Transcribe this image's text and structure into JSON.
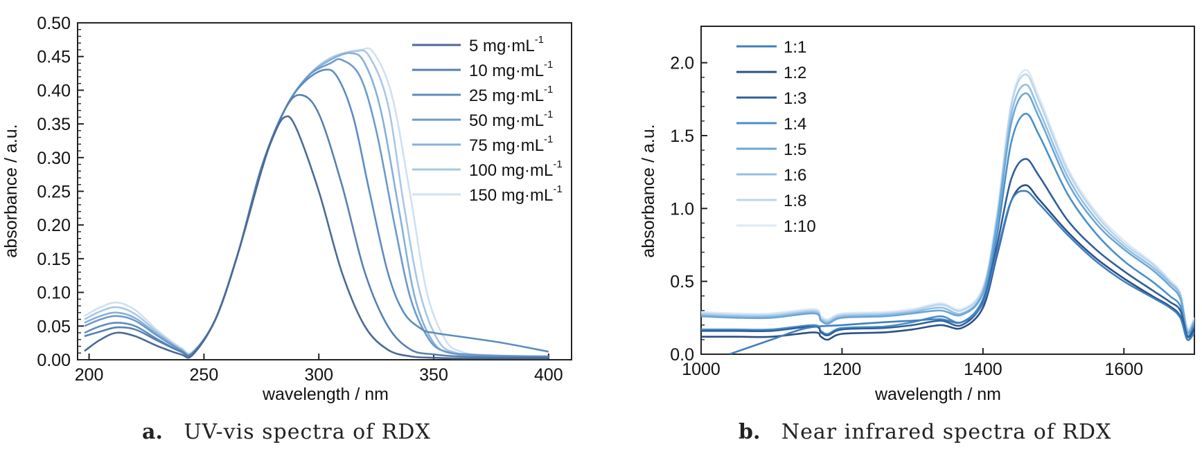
{
  "chart_data": [
    {
      "type": "line",
      "caption_letter": "a.",
      "caption_text": "UV-vis spectra of RDX",
      "title": "",
      "xlabel": "wavelength / nm",
      "ylabel": "absorbance / a.u.",
      "xlim": [
        195,
        410
      ],
      "ylim": [
        0,
        0.5
      ],
      "xticks": [
        200,
        250,
        300,
        350,
        400
      ],
      "yticks": [
        0.0,
        0.05,
        0.1,
        0.15,
        0.2,
        0.25,
        0.3,
        0.35,
        0.4,
        0.45,
        0.5
      ],
      "grid": false,
      "legend_position": "top-right",
      "series": [
        {
          "name": "5 mg·mL",
          "superscript": "-1",
          "color": "#4a6a94",
          "x": [
            198,
            205,
            212,
            220,
            230,
            240,
            245,
            255,
            265,
            275,
            280,
            285,
            290,
            300,
            310,
            320,
            330,
            340,
            350,
            360,
            380,
            400
          ],
          "y": [
            0.013,
            0.03,
            0.04,
            0.035,
            0.02,
            0.008,
            0.007,
            0.06,
            0.16,
            0.28,
            0.33,
            0.36,
            0.345,
            0.25,
            0.13,
            0.05,
            0.015,
            0.005,
            0.003,
            0.002,
            0.002,
            0.002
          ]
        },
        {
          "name": "10 mg·mL",
          "superscript": "-1",
          "color": "#5680b0",
          "x": [
            198,
            205,
            212,
            220,
            230,
            240,
            245,
            255,
            265,
            275,
            285,
            292,
            300,
            310,
            320,
            330,
            340,
            350,
            360,
            380,
            400
          ],
          "y": [
            0.035,
            0.042,
            0.048,
            0.045,
            0.028,
            0.012,
            0.009,
            0.06,
            0.16,
            0.285,
            0.37,
            0.393,
            0.365,
            0.26,
            0.13,
            0.05,
            0.015,
            0.008,
            0.005,
            0.004,
            0.004
          ]
        },
        {
          "name": "25 mg·mL",
          "superscript": "-1",
          "color": "#5d8cc0",
          "x": [
            198,
            205,
            212,
            220,
            230,
            240,
            245,
            255,
            265,
            275,
            285,
            293,
            302,
            308,
            315,
            322,
            330,
            337,
            345,
            350,
            360,
            380,
            400
          ],
          "y": [
            0.04,
            0.05,
            0.055,
            0.05,
            0.03,
            0.012,
            0.01,
            0.06,
            0.16,
            0.285,
            0.37,
            0.41,
            0.43,
            0.42,
            0.36,
            0.25,
            0.13,
            0.07,
            0.045,
            0.04,
            0.035,
            0.025,
            0.012
          ]
        },
        {
          "name": "50 mg·mL",
          "superscript": "-1",
          "color": "#6b9bcb",
          "x": [
            198,
            205,
            212,
            220,
            230,
            240,
            245,
            255,
            265,
            275,
            285,
            295,
            305,
            310,
            318,
            325,
            333,
            340,
            348,
            355,
            365,
            380,
            400
          ],
          "y": [
            0.05,
            0.06,
            0.065,
            0.058,
            0.035,
            0.014,
            0.01,
            0.06,
            0.16,
            0.285,
            0.37,
            0.42,
            0.44,
            0.445,
            0.42,
            0.34,
            0.2,
            0.09,
            0.03,
            0.012,
            0.008,
            0.006,
            0.005
          ]
        },
        {
          "name": "75 mg·mL",
          "superscript": "-1",
          "color": "#86b0d8",
          "x": [
            198,
            205,
            212,
            220,
            230,
            240,
            245,
            255,
            265,
            275,
            285,
            295,
            305,
            314,
            320,
            327,
            335,
            342,
            350,
            358,
            370,
            400
          ],
          "y": [
            0.055,
            0.065,
            0.07,
            0.062,
            0.037,
            0.015,
            0.01,
            0.06,
            0.16,
            0.285,
            0.37,
            0.42,
            0.445,
            0.455,
            0.44,
            0.37,
            0.22,
            0.09,
            0.025,
            0.01,
            0.005,
            0.004
          ]
        },
        {
          "name": "100 mg·mL",
          "superscript": "-1",
          "color": "#a8c7e5",
          "x": [
            198,
            205,
            212,
            220,
            230,
            240,
            245,
            255,
            265,
            275,
            285,
            295,
            305,
            316,
            322,
            330,
            337,
            344,
            352,
            360,
            372,
            400
          ],
          "y": [
            0.06,
            0.072,
            0.078,
            0.068,
            0.04,
            0.016,
            0.011,
            0.06,
            0.16,
            0.285,
            0.37,
            0.42,
            0.447,
            0.458,
            0.45,
            0.38,
            0.23,
            0.1,
            0.028,
            0.01,
            0.005,
            0.004
          ]
        },
        {
          "name": "150 mg·mL",
          "superscript": "-1",
          "color": "#cfe0f1",
          "x": [
            198,
            205,
            212,
            220,
            230,
            240,
            245,
            255,
            265,
            275,
            285,
            295,
            305,
            318,
            324,
            332,
            340,
            347,
            355,
            362,
            375,
            400
          ],
          "y": [
            0.065,
            0.078,
            0.085,
            0.074,
            0.043,
            0.018,
            0.012,
            0.06,
            0.16,
            0.285,
            0.37,
            0.42,
            0.448,
            0.46,
            0.455,
            0.39,
            0.24,
            0.1,
            0.03,
            0.012,
            0.005,
            0.004
          ]
        }
      ]
    },
    {
      "type": "line",
      "caption_letter": "b.",
      "caption_text": "Near infrared spectra of RDX",
      "title": "",
      "xlabel": "wavelength / nm",
      "ylabel": "absorbance / a.u.",
      "xlim": [
        1000,
        1700
      ],
      "ylim": [
        0,
        2.25
      ],
      "xticks": [
        1000,
        1200,
        1400,
        1600
      ],
      "yticks": [
        0.0,
        0.5,
        1.0,
        1.5,
        2.0
      ],
      "grid": false,
      "legend_position": "top-left",
      "series": [
        {
          "name": "1:1",
          "color": "#3f7fbf",
          "x": [
            1040,
            1100,
            1150,
            1200,
            1260,
            1300,
            1340,
            1370,
            1400,
            1420,
            1440,
            1460,
            1480,
            1520,
            1560,
            1600,
            1640,
            1665,
            1680,
            1690,
            1700
          ],
          "y": [
            0.0,
            0.1,
            0.18,
            0.2,
            0.22,
            0.23,
            0.24,
            0.22,
            0.35,
            0.7,
            1.05,
            1.12,
            1.03,
            0.82,
            0.64,
            0.5,
            0.39,
            0.32,
            0.25,
            0.1,
            0.15
          ]
        },
        {
          "name": "1:2",
          "color": "#2a4f85",
          "x": [
            1000,
            1050,
            1100,
            1160,
            1170,
            1180,
            1200,
            1260,
            1300,
            1340,
            1370,
            1400,
            1420,
            1440,
            1460,
            1480,
            1520,
            1560,
            1600,
            1640,
            1665,
            1680,
            1690,
            1700
          ],
          "y": [
            0.12,
            0.12,
            0.12,
            0.15,
            0.12,
            0.1,
            0.14,
            0.15,
            0.17,
            0.2,
            0.18,
            0.32,
            0.68,
            1.05,
            1.16,
            1.06,
            0.84,
            0.66,
            0.52,
            0.4,
            0.33,
            0.26,
            0.1,
            0.16
          ]
        },
        {
          "name": "1:3",
          "color": "#2e5f9a",
          "x": [
            1000,
            1050,
            1100,
            1160,
            1170,
            1180,
            1200,
            1260,
            1300,
            1340,
            1370,
            1400,
            1420,
            1440,
            1460,
            1480,
            1520,
            1560,
            1600,
            1640,
            1665,
            1680,
            1690,
            1700
          ],
          "y": [
            0.16,
            0.16,
            0.16,
            0.19,
            0.15,
            0.13,
            0.17,
            0.18,
            0.2,
            0.23,
            0.2,
            0.36,
            0.75,
            1.2,
            1.34,
            1.22,
            0.92,
            0.72,
            0.57,
            0.44,
            0.36,
            0.3,
            0.12,
            0.18
          ]
        },
        {
          "name": "1:4",
          "color": "#4a90c8",
          "x": [
            1000,
            1050,
            1100,
            1160,
            1170,
            1180,
            1200,
            1260,
            1300,
            1340,
            1370,
            1400,
            1420,
            1440,
            1460,
            1480,
            1520,
            1560,
            1600,
            1640,
            1665,
            1680,
            1690,
            1700
          ],
          "y": [
            0.17,
            0.17,
            0.17,
            0.2,
            0.16,
            0.14,
            0.18,
            0.19,
            0.22,
            0.26,
            0.22,
            0.38,
            0.82,
            1.45,
            1.65,
            1.5,
            1.1,
            0.83,
            0.64,
            0.5,
            0.4,
            0.33,
            0.13,
            0.2
          ]
        },
        {
          "name": "1:5",
          "color": "#6aa6d6",
          "x": [
            1000,
            1050,
            1100,
            1160,
            1170,
            1180,
            1200,
            1260,
            1300,
            1340,
            1370,
            1400,
            1420,
            1440,
            1460,
            1480,
            1520,
            1560,
            1600,
            1640,
            1665,
            1680,
            1690,
            1700
          ],
          "y": [
            0.26,
            0.25,
            0.25,
            0.28,
            0.23,
            0.21,
            0.25,
            0.26,
            0.28,
            0.3,
            0.27,
            0.42,
            0.9,
            1.58,
            1.79,
            1.62,
            1.18,
            0.9,
            0.72,
            0.58,
            0.47,
            0.38,
            0.15,
            0.22
          ]
        },
        {
          "name": "1:6",
          "color": "#92bfe3",
          "x": [
            1000,
            1050,
            1100,
            1160,
            1170,
            1180,
            1200,
            1260,
            1300,
            1340,
            1370,
            1400,
            1420,
            1440,
            1460,
            1480,
            1520,
            1560,
            1600,
            1640,
            1665,
            1680,
            1690,
            1700
          ],
          "y": [
            0.27,
            0.26,
            0.26,
            0.29,
            0.24,
            0.22,
            0.26,
            0.27,
            0.29,
            0.32,
            0.28,
            0.43,
            0.92,
            1.64,
            1.85,
            1.67,
            1.22,
            0.93,
            0.74,
            0.6,
            0.49,
            0.4,
            0.16,
            0.23
          ]
        },
        {
          "name": "1:8",
          "color": "#bad6ee",
          "x": [
            1000,
            1050,
            1100,
            1160,
            1170,
            1180,
            1200,
            1260,
            1300,
            1340,
            1370,
            1400,
            1420,
            1440,
            1460,
            1480,
            1520,
            1560,
            1600,
            1640,
            1665,
            1680,
            1690,
            1700
          ],
          "y": [
            0.28,
            0.27,
            0.27,
            0.3,
            0.25,
            0.23,
            0.27,
            0.28,
            0.3,
            0.34,
            0.3,
            0.45,
            0.95,
            1.7,
            1.92,
            1.73,
            1.26,
            0.96,
            0.76,
            0.62,
            0.5,
            0.41,
            0.17,
            0.24
          ]
        },
        {
          "name": "1:10",
          "color": "#dde9f5",
          "x": [
            1000,
            1050,
            1100,
            1160,
            1170,
            1180,
            1200,
            1260,
            1300,
            1340,
            1370,
            1400,
            1420,
            1440,
            1460,
            1480,
            1520,
            1560,
            1600,
            1640,
            1665,
            1680,
            1690,
            1700
          ],
          "y": [
            0.29,
            0.28,
            0.28,
            0.31,
            0.26,
            0.24,
            0.28,
            0.29,
            0.31,
            0.35,
            0.31,
            0.46,
            0.97,
            1.72,
            1.95,
            1.76,
            1.28,
            0.98,
            0.78,
            0.63,
            0.51,
            0.42,
            0.18,
            0.25
          ]
        }
      ]
    }
  ]
}
